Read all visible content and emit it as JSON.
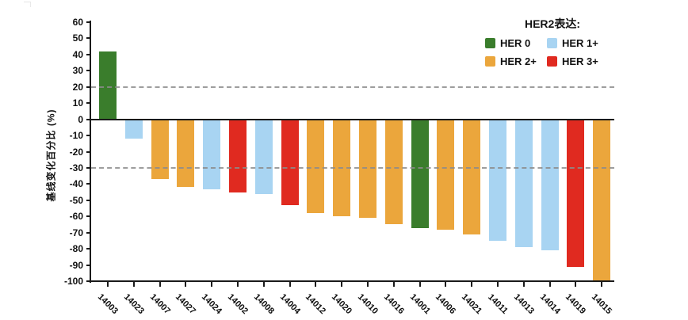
{
  "legend": {
    "title": "HER2表达:",
    "items": [
      {
        "label": "HER 0",
        "color": "#3A7D2C"
      },
      {
        "label": "HER 1+",
        "color": "#A8D4F2"
      },
      {
        "label": "HER 2+",
        "color": "#EBA63C"
      },
      {
        "label": "HER 3+",
        "color": "#E02A20"
      }
    ]
  },
  "chart_data": {
    "type": "bar",
    "subtype": "waterfall",
    "title": "",
    "xlabel": "",
    "ylabel": "基线变化百分比 (%)",
    "ylim": [
      -100,
      60
    ],
    "ytick_step": 10,
    "grid": false,
    "legend_position": "top-right",
    "reference_lines": [
      20,
      -30
    ],
    "axis_color": "#1a1a1a",
    "reference_line_color": "#8c8c8c",
    "group_colors": {
      "HER 0": "#3A7D2C",
      "HER 1+": "#A8D4F2",
      "HER 2+": "#EBA63C",
      "HER 3+": "#E02A20"
    },
    "patients": [
      {
        "id": "14003",
        "her2": "HER 0",
        "value": 42
      },
      {
        "id": "14023",
        "her2": "HER 1+",
        "value": -12
      },
      {
        "id": "14007",
        "her2": "HER 2+",
        "value": -37
      },
      {
        "id": "14027",
        "her2": "HER 2+",
        "value": -42
      },
      {
        "id": "14024",
        "her2": "HER 1+",
        "value": -43
      },
      {
        "id": "14002",
        "her2": "HER 3+",
        "value": -45
      },
      {
        "id": "14008",
        "her2": "HER 1+",
        "value": -46
      },
      {
        "id": "14004",
        "her2": "HER 3+",
        "value": -53
      },
      {
        "id": "14012",
        "her2": "HER 2+",
        "value": -58
      },
      {
        "id": "14020",
        "her2": "HER 2+",
        "value": -60
      },
      {
        "id": "14010",
        "her2": "HER 2+",
        "value": -61
      },
      {
        "id": "14016",
        "her2": "HER 2+",
        "value": -65
      },
      {
        "id": "14001",
        "her2": "HER 0",
        "value": -67
      },
      {
        "id": "14006",
        "her2": "HER 2+",
        "value": -68
      },
      {
        "id": "14021",
        "her2": "HER 2+",
        "value": -71
      },
      {
        "id": "14011",
        "her2": "HER 1+",
        "value": -75
      },
      {
        "id": "14013",
        "her2": "HER 1+",
        "value": -79
      },
      {
        "id": "14014",
        "her2": "HER 1+",
        "value": -81
      },
      {
        "id": "14019",
        "her2": "HER 3+",
        "value": -91
      },
      {
        "id": "14015",
        "her2": "HER 2+",
        "value": -100
      }
    ]
  }
}
